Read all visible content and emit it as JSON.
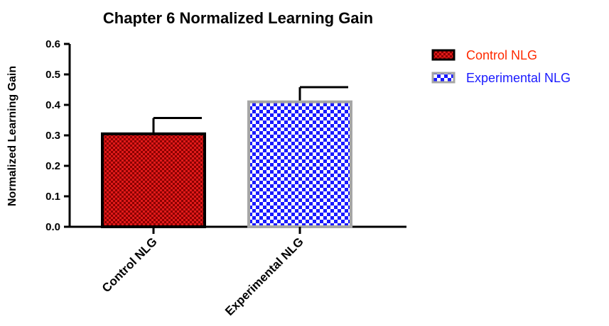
{
  "chart_data": {
    "type": "bar",
    "title": "Chapter 6 Normalized Learning Gain",
    "xlabel": "",
    "ylabel": "Normalized Learning Gain",
    "categories": [
      "Control NLG",
      "Experimental NLG"
    ],
    "values": [
      0.305,
      0.41
    ],
    "error": [
      0.052,
      0.048
    ],
    "ylim": [
      0.0,
      0.6
    ],
    "yticks": [
      "0.0",
      "0.1",
      "0.2",
      "0.3",
      "0.4",
      "0.5",
      "0.6"
    ],
    "grid": false,
    "legend_position": "top-right",
    "legend": [
      "Control NLG",
      "Experimental NLG"
    ],
    "colors": {
      "control_fill": "#8b0000",
      "control_pattern": "#e01a1a",
      "control_border": "#000000",
      "control_legend_text": "#ff2a00",
      "experimental_fill": "#1a1aff",
      "experimental_pattern": "#ffffff",
      "experimental_border": "#a6a6a6",
      "experimental_legend_text": "#1a1aff"
    }
  }
}
